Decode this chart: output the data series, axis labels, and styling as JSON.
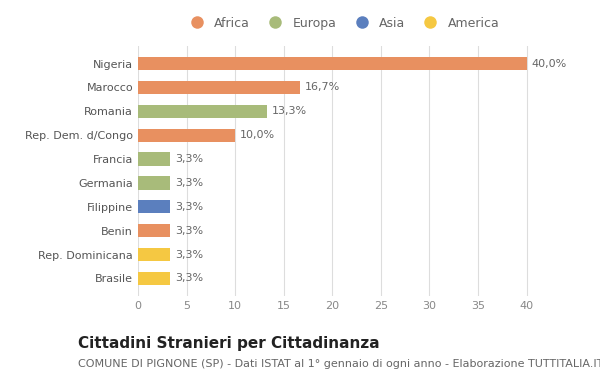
{
  "categories": [
    "Brasile",
    "Rep. Dominicana",
    "Benin",
    "Filippine",
    "Germania",
    "Francia",
    "Rep. Dem. d/Congo",
    "Romania",
    "Marocco",
    "Nigeria"
  ],
  "values": [
    3.3,
    3.3,
    3.3,
    3.3,
    3.3,
    3.3,
    10.0,
    13.3,
    16.7,
    40.0
  ],
  "labels": [
    "3,3%",
    "3,3%",
    "3,3%",
    "3,3%",
    "3,3%",
    "3,3%",
    "10,0%",
    "13,3%",
    "16,7%",
    "40,0%"
  ],
  "colors": [
    "#f5c842",
    "#f5c842",
    "#e89060",
    "#5b7fbe",
    "#a8bb7a",
    "#a8bb7a",
    "#e89060",
    "#a8bb7a",
    "#e89060",
    "#e89060"
  ],
  "legend_labels": [
    "Africa",
    "Europa",
    "Asia",
    "America"
  ],
  "legend_colors": [
    "#e89060",
    "#a8bb7a",
    "#5b7fbe",
    "#f5c842"
  ],
  "title": "Cittadini Stranieri per Cittadinanza",
  "subtitle": "COMUNE DI PIGNONE (SP) - Dati ISTAT al 1° gennaio di ogni anno - Elaborazione TUTTITALIA.IT",
  "xlim": [
    0,
    42
  ],
  "xticks": [
    0,
    5,
    10,
    15,
    20,
    25,
    30,
    35,
    40
  ],
  "background_color": "#ffffff",
  "bar_height": 0.55,
  "title_fontsize": 11,
  "subtitle_fontsize": 8,
  "label_fontsize": 8,
  "tick_fontsize": 8,
  "legend_fontsize": 9
}
